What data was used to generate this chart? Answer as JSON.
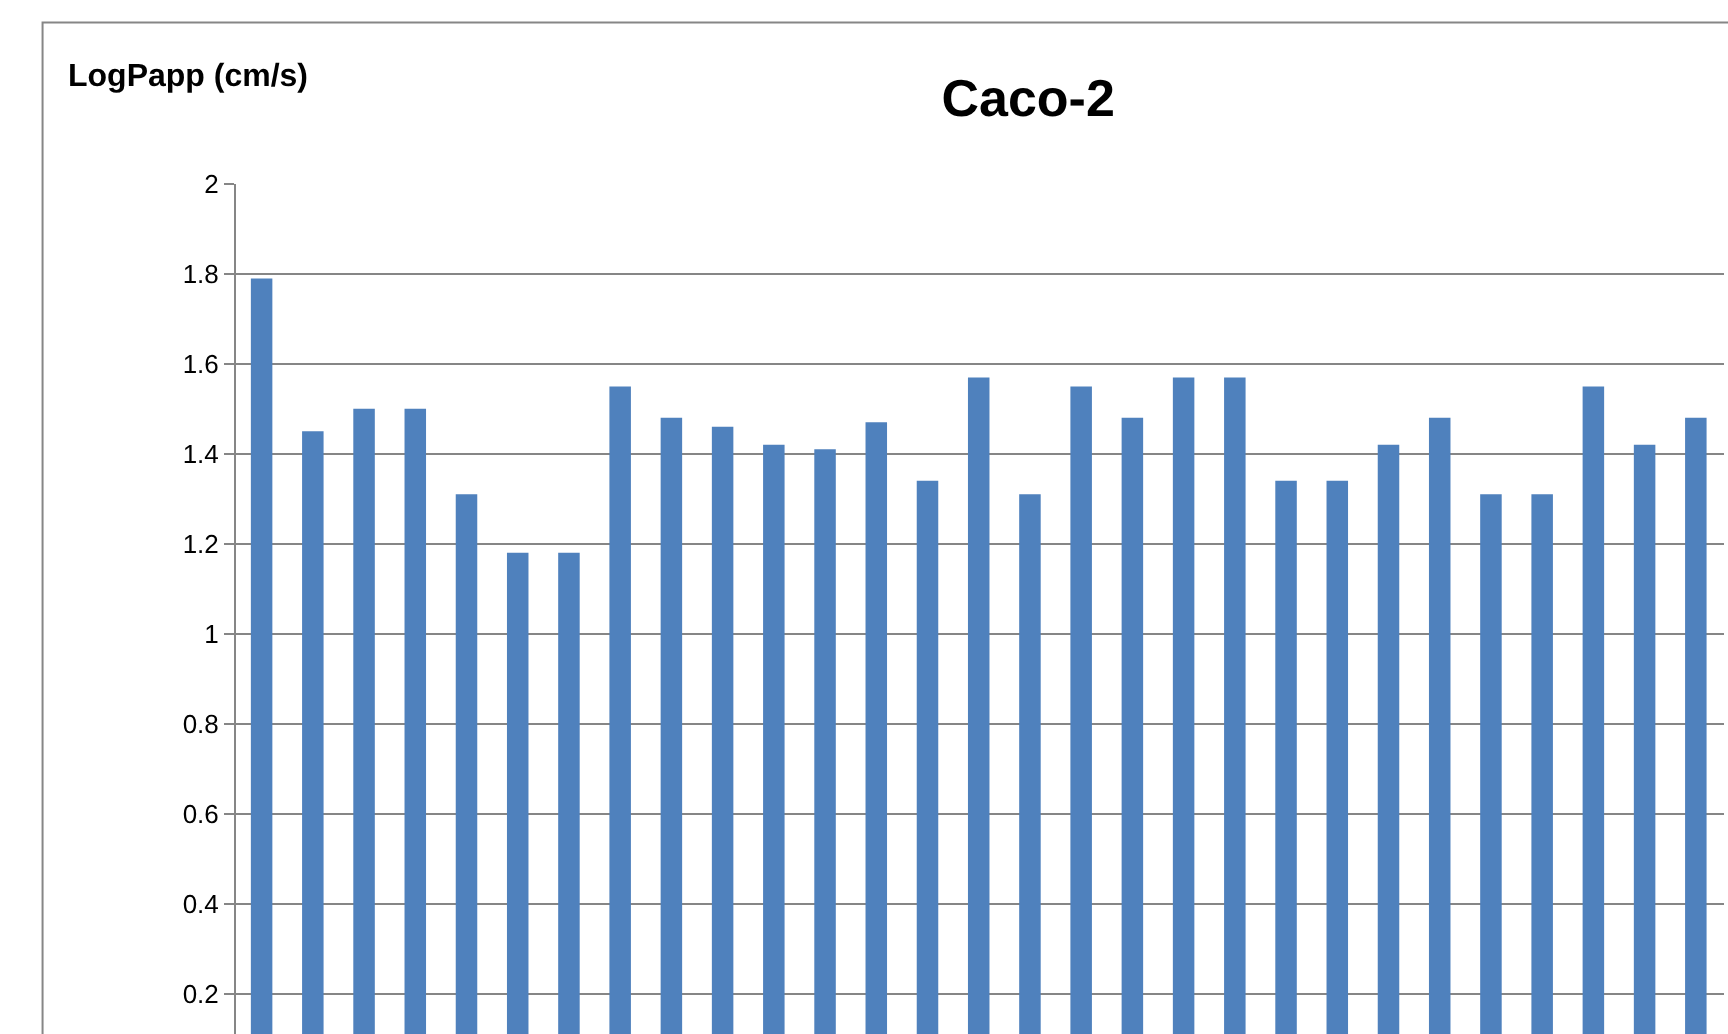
{
  "chart_data": {
    "type": "bar",
    "title": "Caco-2",
    "ylabel": "LogPapp (cm/s)",
    "categories": [
      null,
      null,
      null,
      null,
      null,
      null,
      null,
      null,
      null,
      null,
      null,
      null,
      null,
      null,
      null,
      null,
      null,
      null,
      null,
      null,
      null,
      null,
      null,
      null,
      null,
      null,
      null,
      null,
      null
    ],
    "values": [
      1.79,
      1.45,
      1.5,
      1.5,
      1.31,
      1.18,
      1.18,
      1.55,
      1.48,
      1.46,
      1.42,
      1.41,
      1.47,
      1.34,
      1.57,
      1.31,
      1.55,
      1.48,
      1.57,
      1.57,
      1.34,
      1.34,
      1.42,
      1.48,
      1.31,
      1.31,
      1.55,
      1.42,
      1.48
    ],
    "color": "#4f81bd",
    "ylim": [
      0.11,
      2
    ],
    "yticks": [
      0.2,
      0.4,
      0.6,
      0.8,
      1,
      1.2,
      1.4,
      1.6,
      1.8,
      2
    ],
    "grid": "y"
  }
}
